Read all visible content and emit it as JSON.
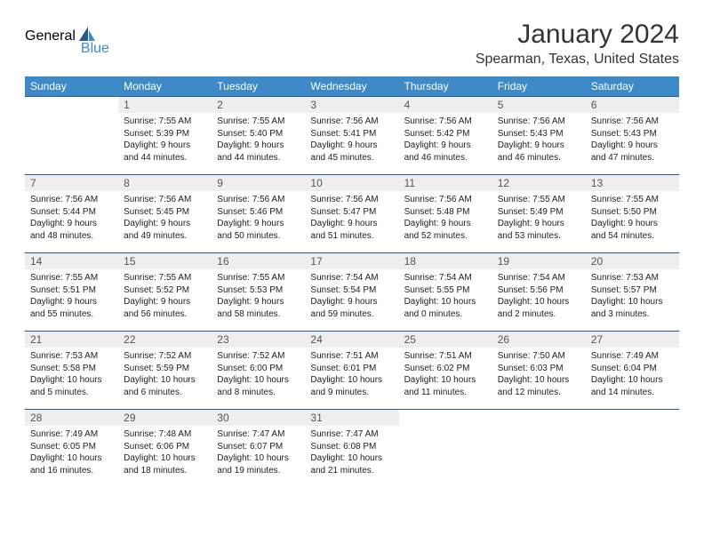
{
  "logo": {
    "part1": "General",
    "part2": "Blue"
  },
  "title": "January 2024",
  "location": "Spearman, Texas, United States",
  "colors": {
    "header_bg": "#3e8ac9",
    "header_text": "#ffffff",
    "daynum_bg": "#eeeeee",
    "rule": "#2a5a8a",
    "logo_gray": "#5a5a5a",
    "logo_blue": "#3e8ac9"
  },
  "weekdays": [
    "Sunday",
    "Monday",
    "Tuesday",
    "Wednesday",
    "Thursday",
    "Friday",
    "Saturday"
  ],
  "weeks": [
    [
      {
        "n": "",
        "sunrise": "",
        "sunset": "",
        "daylight": ""
      },
      {
        "n": "1",
        "sunrise": "7:55 AM",
        "sunset": "5:39 PM",
        "daylight": "9 hours and 44 minutes."
      },
      {
        "n": "2",
        "sunrise": "7:55 AM",
        "sunset": "5:40 PM",
        "daylight": "9 hours and 44 minutes."
      },
      {
        "n": "3",
        "sunrise": "7:56 AM",
        "sunset": "5:41 PM",
        "daylight": "9 hours and 45 minutes."
      },
      {
        "n": "4",
        "sunrise": "7:56 AM",
        "sunset": "5:42 PM",
        "daylight": "9 hours and 46 minutes."
      },
      {
        "n": "5",
        "sunrise": "7:56 AM",
        "sunset": "5:43 PM",
        "daylight": "9 hours and 46 minutes."
      },
      {
        "n": "6",
        "sunrise": "7:56 AM",
        "sunset": "5:43 PM",
        "daylight": "9 hours and 47 minutes."
      }
    ],
    [
      {
        "n": "7",
        "sunrise": "7:56 AM",
        "sunset": "5:44 PM",
        "daylight": "9 hours and 48 minutes."
      },
      {
        "n": "8",
        "sunrise": "7:56 AM",
        "sunset": "5:45 PM",
        "daylight": "9 hours and 49 minutes."
      },
      {
        "n": "9",
        "sunrise": "7:56 AM",
        "sunset": "5:46 PM",
        "daylight": "9 hours and 50 minutes."
      },
      {
        "n": "10",
        "sunrise": "7:56 AM",
        "sunset": "5:47 PM",
        "daylight": "9 hours and 51 minutes."
      },
      {
        "n": "11",
        "sunrise": "7:56 AM",
        "sunset": "5:48 PM",
        "daylight": "9 hours and 52 minutes."
      },
      {
        "n": "12",
        "sunrise": "7:55 AM",
        "sunset": "5:49 PM",
        "daylight": "9 hours and 53 minutes."
      },
      {
        "n": "13",
        "sunrise": "7:55 AM",
        "sunset": "5:50 PM",
        "daylight": "9 hours and 54 minutes."
      }
    ],
    [
      {
        "n": "14",
        "sunrise": "7:55 AM",
        "sunset": "5:51 PM",
        "daylight": "9 hours and 55 minutes."
      },
      {
        "n": "15",
        "sunrise": "7:55 AM",
        "sunset": "5:52 PM",
        "daylight": "9 hours and 56 minutes."
      },
      {
        "n": "16",
        "sunrise": "7:55 AM",
        "sunset": "5:53 PM",
        "daylight": "9 hours and 58 minutes."
      },
      {
        "n": "17",
        "sunrise": "7:54 AM",
        "sunset": "5:54 PM",
        "daylight": "9 hours and 59 minutes."
      },
      {
        "n": "18",
        "sunrise": "7:54 AM",
        "sunset": "5:55 PM",
        "daylight": "10 hours and 0 minutes."
      },
      {
        "n": "19",
        "sunrise": "7:54 AM",
        "sunset": "5:56 PM",
        "daylight": "10 hours and 2 minutes."
      },
      {
        "n": "20",
        "sunrise": "7:53 AM",
        "sunset": "5:57 PM",
        "daylight": "10 hours and 3 minutes."
      }
    ],
    [
      {
        "n": "21",
        "sunrise": "7:53 AM",
        "sunset": "5:58 PM",
        "daylight": "10 hours and 5 minutes."
      },
      {
        "n": "22",
        "sunrise": "7:52 AM",
        "sunset": "5:59 PM",
        "daylight": "10 hours and 6 minutes."
      },
      {
        "n": "23",
        "sunrise": "7:52 AM",
        "sunset": "6:00 PM",
        "daylight": "10 hours and 8 minutes."
      },
      {
        "n": "24",
        "sunrise": "7:51 AM",
        "sunset": "6:01 PM",
        "daylight": "10 hours and 9 minutes."
      },
      {
        "n": "25",
        "sunrise": "7:51 AM",
        "sunset": "6:02 PM",
        "daylight": "10 hours and 11 minutes."
      },
      {
        "n": "26",
        "sunrise": "7:50 AM",
        "sunset": "6:03 PM",
        "daylight": "10 hours and 12 minutes."
      },
      {
        "n": "27",
        "sunrise": "7:49 AM",
        "sunset": "6:04 PM",
        "daylight": "10 hours and 14 minutes."
      }
    ],
    [
      {
        "n": "28",
        "sunrise": "7:49 AM",
        "sunset": "6:05 PM",
        "daylight": "10 hours and 16 minutes."
      },
      {
        "n": "29",
        "sunrise": "7:48 AM",
        "sunset": "6:06 PM",
        "daylight": "10 hours and 18 minutes."
      },
      {
        "n": "30",
        "sunrise": "7:47 AM",
        "sunset": "6:07 PM",
        "daylight": "10 hours and 19 minutes."
      },
      {
        "n": "31",
        "sunrise": "7:47 AM",
        "sunset": "6:08 PM",
        "daylight": "10 hours and 21 minutes."
      },
      {
        "n": "",
        "sunrise": "",
        "sunset": "",
        "daylight": ""
      },
      {
        "n": "",
        "sunrise": "",
        "sunset": "",
        "daylight": ""
      },
      {
        "n": "",
        "sunrise": "",
        "sunset": "",
        "daylight": ""
      }
    ]
  ],
  "labels": {
    "sunrise": "Sunrise:",
    "sunset": "Sunset:",
    "daylight": "Daylight:"
  }
}
